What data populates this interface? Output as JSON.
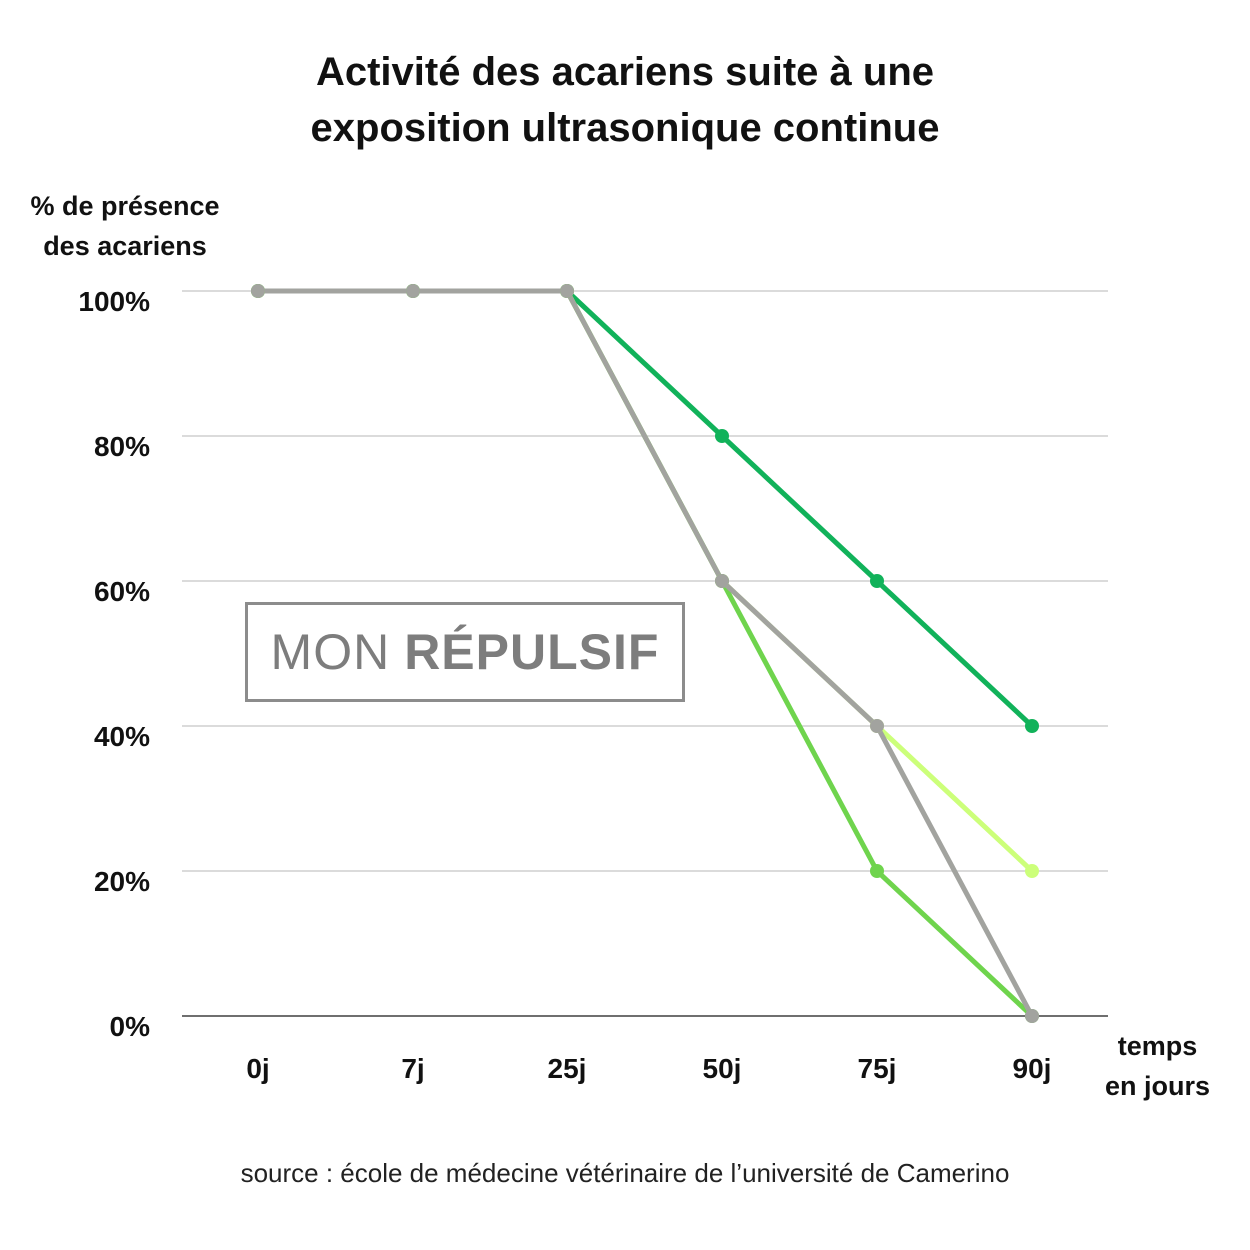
{
  "title_lines": [
    "Activité des acariens suite à une",
    "exposition ultrasonique continue"
  ],
  "logo": {
    "text_light": "MON",
    "text_bold": "RÉPULSIF",
    "color": "#7d7d7d"
  },
  "source": "source : école de médecine vétérinaire de l’université de Camerino",
  "chart_data": {
    "type": "line",
    "title": "Activité des acariens suite à une exposition ultrasonique continue",
    "ylabel_lines": [
      "% de présence",
      "des acariens"
    ],
    "xlabel_lines": [
      "temps",
      "en jours"
    ],
    "categories": [
      "0j",
      "7j",
      "25j",
      "50j",
      "75j",
      "90j"
    ],
    "yticks": [
      "0%",
      "20%",
      "40%",
      "60%",
      "80%",
      "100%"
    ],
    "ylim": [
      0,
      100
    ],
    "grid": true,
    "legend": "none",
    "series": [
      {
        "color": "#11b25a",
        "values": [
          100,
          100,
          100,
          80,
          60,
          40
        ]
      },
      {
        "color": "#ccff7a",
        "values": [
          100,
          100,
          100,
          60,
          40,
          20
        ]
      },
      {
        "color": "#6fd44d",
        "values": [
          100,
          100,
          100,
          60,
          20,
          0
        ]
      },
      {
        "color": "#a2a39f",
        "values": [
          100,
          100,
          100,
          60,
          40,
          0
        ]
      }
    ]
  }
}
